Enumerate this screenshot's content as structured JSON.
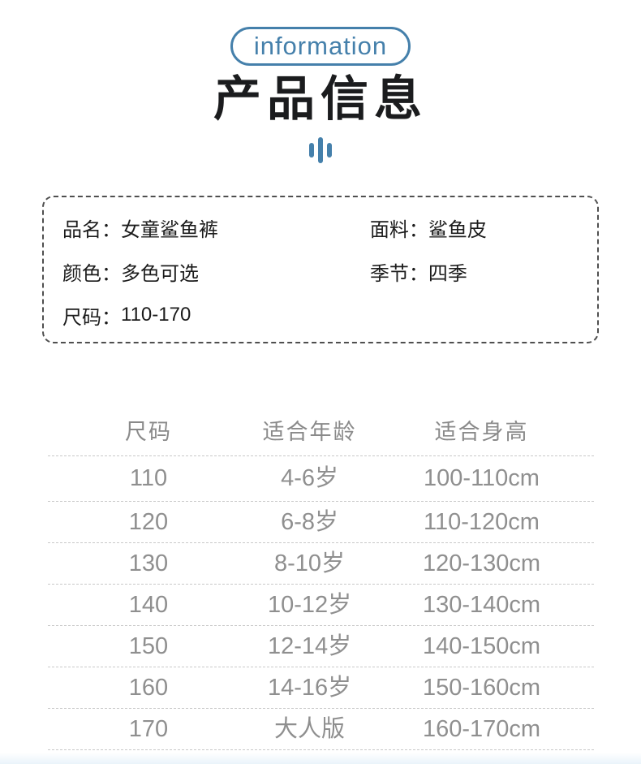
{
  "colors": {
    "accent_blue": "#4580ab",
    "title_color": "#1b1c1e",
    "page_bg": "#ffffff"
  },
  "header": {
    "badge_label": "information",
    "title": "产品信息"
  },
  "info_box": {
    "fields": [
      {
        "label": "品名：",
        "value": "女童鲨鱼裤"
      },
      {
        "label": "面料：",
        "value": "鲨鱼皮"
      },
      {
        "label": "颜色：",
        "value": "多色可选"
      },
      {
        "label": "季节：",
        "value": "四季"
      },
      {
        "label": "尺码：",
        "value": "110-170"
      }
    ]
  },
  "size_table": {
    "headers": [
      "尺码",
      "适合年龄",
      "适合身高"
    ],
    "rows": [
      [
        "110",
        "4-6岁",
        "100-110cm"
      ],
      [
        "120",
        "6-8岁",
        "110-120cm"
      ],
      [
        "130",
        "8-10岁",
        "120-130cm"
      ],
      [
        "140",
        "10-12岁",
        "130-140cm"
      ],
      [
        "150",
        "12-14岁",
        "140-150cm"
      ],
      [
        "160",
        "14-16岁",
        "150-160cm"
      ],
      [
        "170",
        "大人版",
        "160-170cm"
      ]
    ]
  }
}
